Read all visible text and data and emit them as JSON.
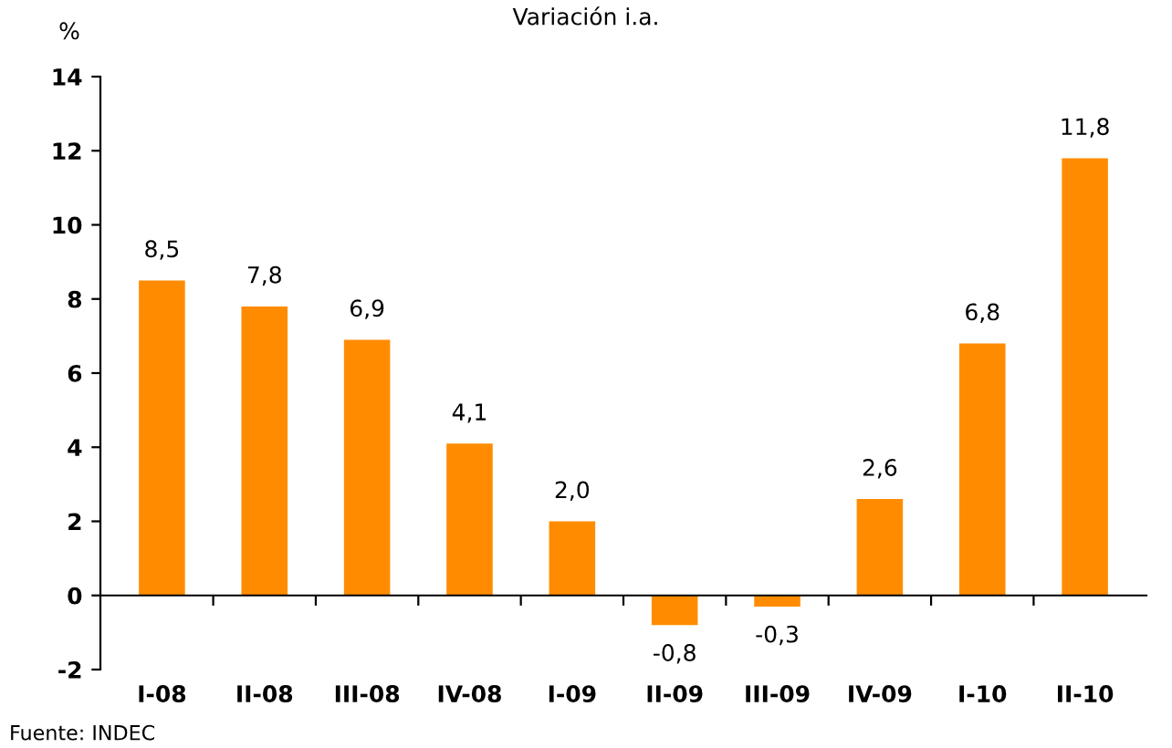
{
  "chart_data": {
    "type": "bar",
    "title": "Variación i.a.",
    "ylabel": "%",
    "categories": [
      "I-08",
      "II-08",
      "III-08",
      "IV-08",
      "I-09",
      "II-09",
      "III-09",
      "IV-09",
      "I-10",
      "II-10"
    ],
    "values": [
      8.5,
      7.8,
      6.9,
      4.1,
      2.0,
      -0.8,
      -0.3,
      2.6,
      6.8,
      11.8
    ],
    "value_labels": [
      "8,5",
      "7,8",
      "6,9",
      "4,1",
      "2,0",
      "-0,8",
      "-0,3",
      "2,6",
      "6,8",
      "11,8"
    ],
    "color": "#ff8c00",
    "ylim": [
      -2,
      14
    ],
    "yticks": [
      -2,
      0,
      2,
      4,
      6,
      8,
      10,
      12,
      14
    ],
    "annotations": [
      "Fuente: INDEC"
    ]
  }
}
